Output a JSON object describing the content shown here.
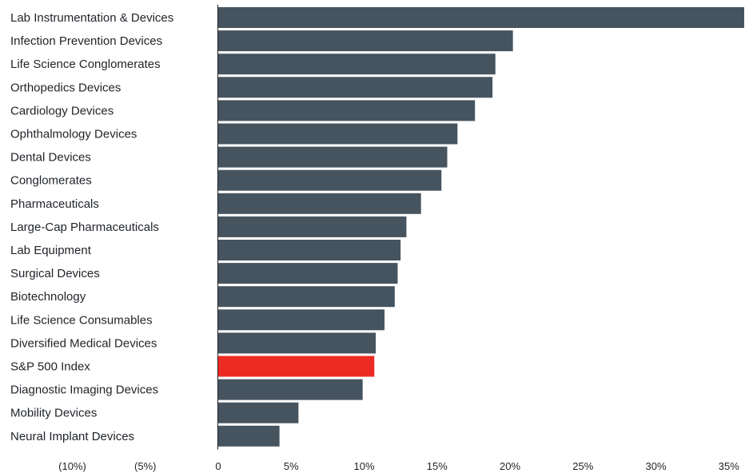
{
  "chart_data": {
    "type": "bar",
    "orientation": "horizontal",
    "title": "",
    "xlabel": "",
    "ylabel": "",
    "xlim": [
      -10,
      35
    ],
    "grid": false,
    "legend": "none",
    "categories": [
      "Lab Instrumentation & Devices",
      "Infection Prevention Devices",
      "Life Science Conglomerates",
      "Orthopedics Devices",
      "Cardiology Devices",
      "Ophthalmology Devices",
      "Dental Devices",
      "Conglomerates",
      "Pharmaceuticals",
      "Large-Cap Pharmaceuticals",
      "Lab Equipment",
      "Surgical Devices",
      "Biotechnology",
      "Life Science Consumables",
      "Diversified Medical Devices",
      "S&P 500 Index",
      "Diagnostic Imaging Devices",
      "Mobility Devices",
      "Neural Implant Devices"
    ],
    "values": [
      36.2,
      20.2,
      19.0,
      18.8,
      17.6,
      16.4,
      15.7,
      15.3,
      13.9,
      12.9,
      12.5,
      12.3,
      12.1,
      11.4,
      10.8,
      10.7,
      9.9,
      5.5,
      4.2
    ],
    "highlight_category": "S&P 500 Index",
    "xticks": [
      {
        "value": -10,
        "label": "(10%)"
      },
      {
        "value": -5,
        "label": "(5%)"
      },
      {
        "value": 0,
        "label": "0"
      },
      {
        "value": 5,
        "label": "5%"
      },
      {
        "value": 10,
        "label": "10%"
      },
      {
        "value": 15,
        "label": "15%"
      },
      {
        "value": 20,
        "label": "20%"
      },
      {
        "value": 25,
        "label": "25%"
      },
      {
        "value": 30,
        "label": "30%"
      },
      {
        "value": 35,
        "label": "35%"
      }
    ],
    "colors": {
      "bar": "#46545f",
      "highlight": "#ee2a24",
      "axis": "#1f2328",
      "text": "#1f2328"
    }
  }
}
